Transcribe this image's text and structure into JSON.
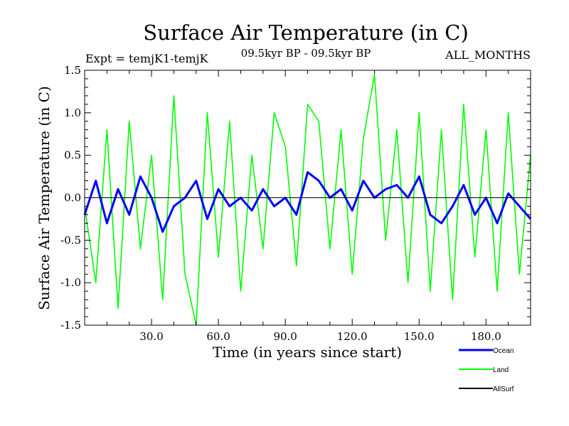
{
  "chart_data": {
    "type": "line",
    "title": "Surface Air Temperature (in C)",
    "subtitle": "09.5kyr BP - 09.5kyr BP",
    "expt_label": "Expt = temjK1-temjK",
    "months_label": "ALL_MONTHS",
    "xlabel": "Time (in years since start)",
    "ylabel": "Surface Air Temperature (in C)",
    "xlim": [
      0,
      200
    ],
    "ylim": [
      -1.5,
      1.5
    ],
    "x_ticks": [
      {
        "value": 30,
        "label": "30.0"
      },
      {
        "value": 60,
        "label": "60.0"
      },
      {
        "value": 90,
        "label": "90.0"
      },
      {
        "value": 120,
        "label": "120.0"
      },
      {
        "value": 150,
        "label": "150.0"
      },
      {
        "value": 180,
        "label": "180.0"
      }
    ],
    "y_ticks": [
      {
        "value": 1.5,
        "label": "1.5"
      },
      {
        "value": 1.0,
        "label": "1.0"
      },
      {
        "value": 0.5,
        "label": "0.5"
      },
      {
        "value": 0.0,
        "label": "0.0"
      },
      {
        "value": -0.5,
        "label": "-0.5"
      },
      {
        "value": -1.0,
        "label": "-1.0"
      },
      {
        "value": -1.5,
        "label": "-1.5"
      }
    ],
    "reference_line": 0.0,
    "series": [
      {
        "name": "Land",
        "color": "#00ff00",
        "x": [
          0,
          5,
          10,
          15,
          20,
          25,
          30,
          35,
          40,
          45,
          50,
          55,
          60,
          65,
          70,
          75,
          80,
          85,
          90,
          95,
          100,
          105,
          110,
          115,
          120,
          125,
          130,
          135,
          140,
          145,
          150,
          155,
          160,
          165,
          170,
          175,
          180,
          185,
          190,
          195,
          200
        ],
        "values": [
          -0.1,
          -1.0,
          0.8,
          -1.3,
          0.9,
          -0.6,
          0.5,
          -1.2,
          1.2,
          -0.9,
          -1.5,
          1.0,
          -0.7,
          0.9,
          -1.1,
          0.5,
          -0.6,
          1.0,
          0.6,
          -0.8,
          1.1,
          0.9,
          -0.6,
          0.8,
          -0.9,
          0.7,
          1.45,
          -0.5,
          0.8,
          -1.0,
          1.0,
          -1.1,
          0.8,
          -1.2,
          1.1,
          -0.7,
          0.8,
          -1.1,
          1.0,
          -0.9,
          0.5
        ]
      },
      {
        "name": "Ocean",
        "color": "#0000ff",
        "x": [
          0,
          5,
          10,
          15,
          20,
          25,
          30,
          35,
          40,
          45,
          50,
          55,
          60,
          65,
          70,
          75,
          80,
          85,
          90,
          95,
          100,
          105,
          110,
          115,
          120,
          125,
          130,
          135,
          140,
          145,
          150,
          155,
          160,
          165,
          170,
          175,
          180,
          185,
          190,
          195,
          200
        ],
        "values": [
          -0.2,
          0.2,
          -0.3,
          0.1,
          -0.2,
          0.25,
          0.0,
          -0.4,
          -0.1,
          0.0,
          0.2,
          -0.25,
          0.1,
          -0.1,
          0.0,
          -0.15,
          0.1,
          -0.1,
          0.0,
          -0.2,
          0.3,
          0.2,
          0.0,
          0.1,
          -0.15,
          0.2,
          0.0,
          0.1,
          0.15,
          0.0,
          0.25,
          -0.2,
          -0.3,
          -0.1,
          0.15,
          -0.2,
          0.0,
          -0.3,
          0.05,
          -0.1,
          -0.25
        ]
      },
      {
        "name": "AllSurf",
        "color": "#000000",
        "x": [],
        "values": []
      }
    ],
    "legend": [
      {
        "name": "Ocean",
        "color": "#0000ff"
      },
      {
        "name": "Land",
        "color": "#00ff00"
      },
      {
        "name": "AllSurf",
        "color": "#000000"
      }
    ],
    "legend_position": "bottom-right"
  }
}
